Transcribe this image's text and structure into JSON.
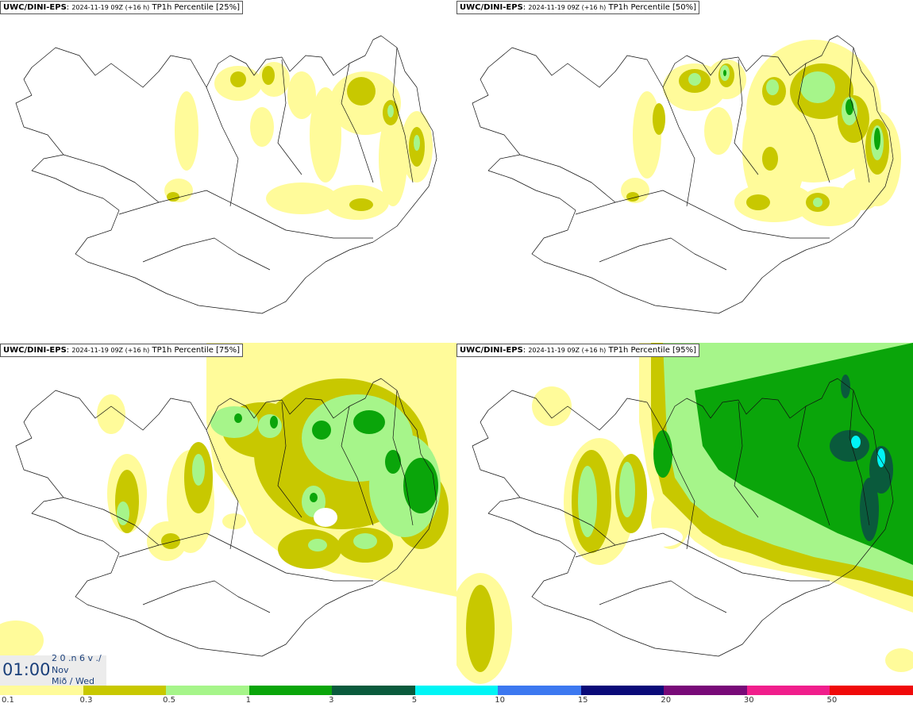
{
  "panels": [
    {
      "source": "UWC/DINI-EPS",
      "run": "2024-11-19 09Z (+16 h)",
      "label": "TP1h Percentile [25%]"
    },
    {
      "source": "UWC/DINI-EPS",
      "run": "2024-11-19 09Z (+16 h)",
      "label": "TP1h Percentile [50%]"
    },
    {
      "source": "UWC/DINI-EPS",
      "run": "2024-11-19 09Z (+16 h)",
      "label": "TP1h Percentile [75%]"
    },
    {
      "source": "UWC/DINI-EPS",
      "run": "2024-11-19 09Z (+16 h)",
      "label": "TP1h Percentile [95%]"
    }
  ],
  "timebox": {
    "time": "01:00",
    "line1": "2 0 .n 6 v ./",
    "line2": "Nov",
    "line3": "Mið / Wed"
  },
  "legend": {
    "colors": [
      "#fffb9a",
      "#c8c800",
      "#a6f58a",
      "#0aa50a",
      "#0a5a3c",
      "#00f5f5",
      "#3c78f0",
      "#0a0a78",
      "#780a78",
      "#f01e8c",
      "#f00a0a"
    ],
    "labels": [
      "0.1",
      "0.3",
      "0.5",
      "1",
      "3",
      "5",
      "10",
      "15",
      "20",
      "30",
      "50"
    ]
  },
  "colors": {
    "light_yellow": "#fffb9a",
    "olive": "#c8c800",
    "light_green": "#a6f58a",
    "green": "#0aa50a",
    "dark_green": "#0a5a3c",
    "cyan": "#00f5f5"
  }
}
